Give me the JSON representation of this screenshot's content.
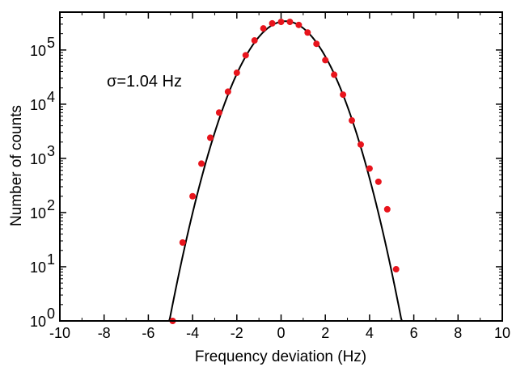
{
  "chart_data": {
    "type": "scatter",
    "title": "",
    "xlabel": "Frequency deviation (Hz)",
    "ylabel": "Number of counts",
    "xlim": [
      -10,
      10
    ],
    "ylim": [
      1,
      500000
    ],
    "yscale": "log",
    "grid": false,
    "legend": "none",
    "x_ticks": [
      -10,
      -8,
      -6,
      -4,
      -2,
      0,
      2,
      4,
      6,
      8,
      10
    ],
    "x_tick_labels": [
      "-10",
      "-8",
      "-6",
      "-4",
      "-2",
      "0",
      "2",
      "4",
      "6",
      "8",
      "10"
    ],
    "y_ticks": [
      {
        "value": 1,
        "base": "10",
        "exp": "0"
      },
      {
        "value": 10,
        "base": "10",
        "exp": "1"
      },
      {
        "value": 100,
        "base": "10",
        "exp": "2"
      },
      {
        "value": 1000,
        "base": "10",
        "exp": "3"
      },
      {
        "value": 10000,
        "base": "10",
        "exp": "4"
      },
      {
        "value": 100000,
        "base": "10",
        "exp": "5"
      }
    ],
    "annotation": "σ=1.04 Hz",
    "series": [
      {
        "kind": "points",
        "color": "#e8141c",
        "x": [
          -4.9,
          -4.45,
          -4.0,
          -3.6,
          -3.2,
          -2.8,
          -2.4,
          -2.0,
          -1.6,
          -1.2,
          -0.8,
          -0.4,
          0.0,
          0.4,
          0.8,
          1.2,
          1.6,
          2.0,
          2.4,
          2.8,
          3.2,
          3.6,
          4.0,
          4.4,
          4.8,
          5.2
        ],
        "y": [
          1,
          28,
          200,
          800,
          2400,
          7000,
          17000,
          38000,
          80000,
          150000,
          250000,
          310000,
          330000,
          330000,
          290000,
          210000,
          130000,
          65000,
          35000,
          15000,
          5000,
          1800,
          650,
          370,
          115,
          9
        ]
      },
      {
        "kind": "gaussian-fit",
        "color": "#000000",
        "sigma": 1.04,
        "center": 0.2,
        "peak": 340000,
        "x_range": [
          -5.1,
          5.5
        ]
      }
    ]
  }
}
